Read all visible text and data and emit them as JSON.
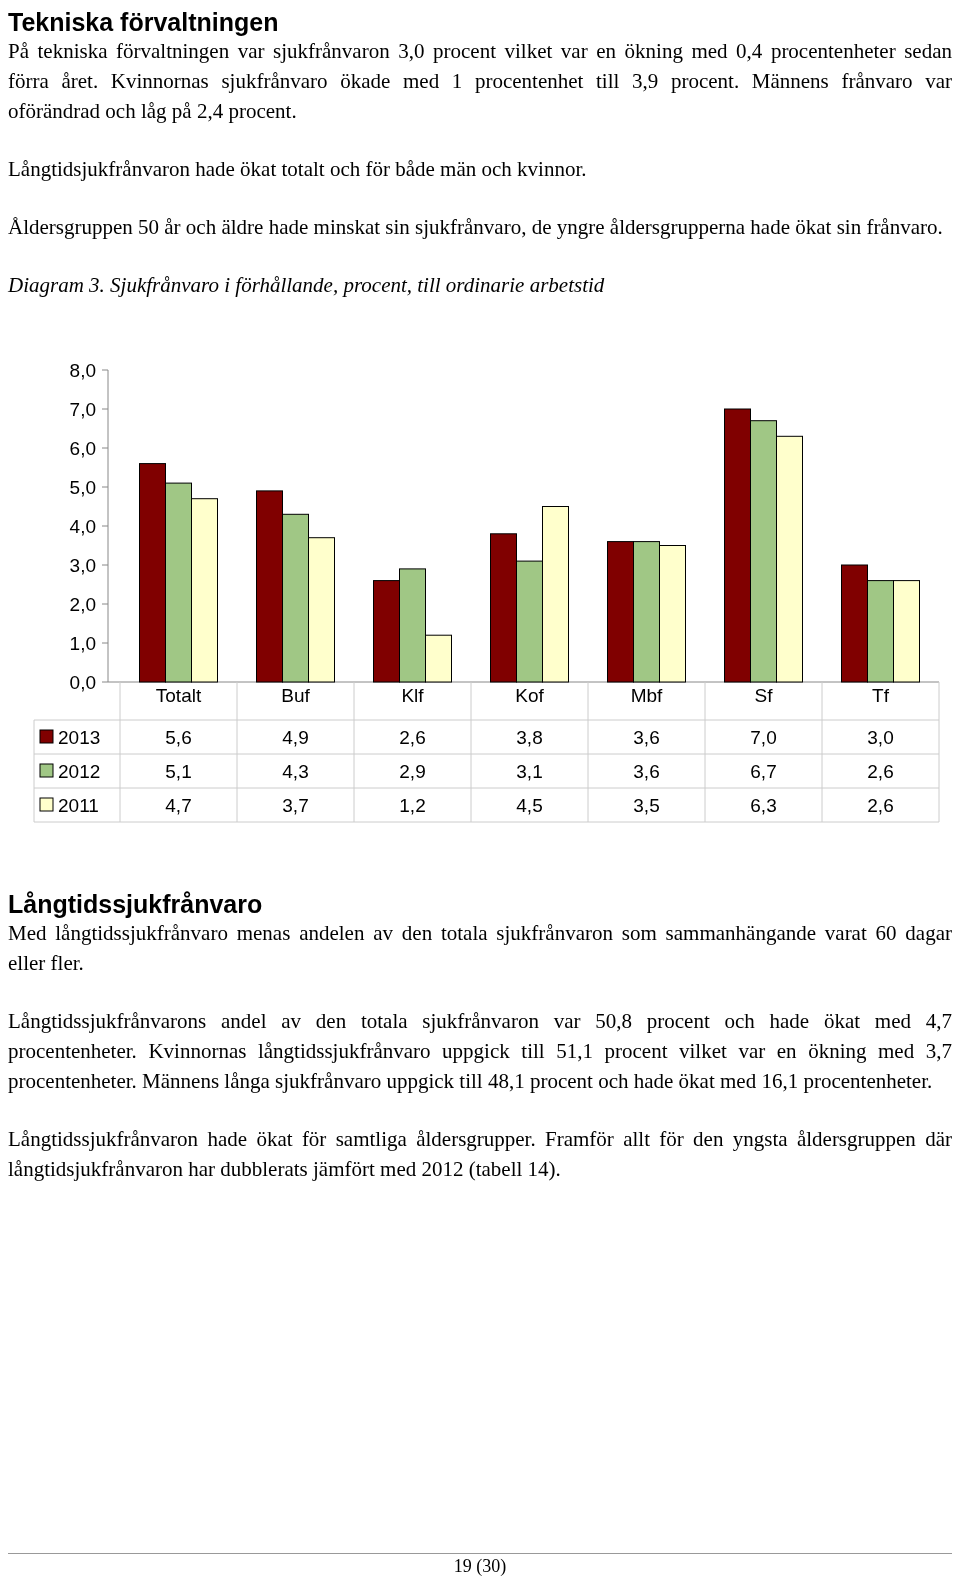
{
  "chart_data": {
    "type": "bar",
    "title": "Diagram 3. Sjukfrånvaro i förhållande, procent, till ordinarie arbetstid",
    "categories": [
      "Totalt",
      "Buf",
      "Klf",
      "Kof",
      "Mbf",
      "Sf",
      "Tf"
    ],
    "series": [
      {
        "name": "2013",
        "color": "#800000",
        "values": [
          5.6,
          4.9,
          2.6,
          3.8,
          3.6,
          7.0,
          3.0
        ],
        "value_labels": [
          "5,6",
          "4,9",
          "2,6",
          "3,8",
          "3,6",
          "7,0",
          "3,0"
        ]
      },
      {
        "name": "2012",
        "color": "#a0c785",
        "values": [
          5.1,
          4.3,
          2.9,
          3.1,
          3.6,
          6.7,
          2.6
        ],
        "value_labels": [
          "5,1",
          "4,3",
          "2,9",
          "3,1",
          "3,6",
          "6,7",
          "2,6"
        ]
      },
      {
        "name": "2011",
        "color": "#ffffcc",
        "values": [
          4.7,
          3.7,
          1.2,
          4.5,
          3.5,
          6.3,
          2.6
        ],
        "value_labels": [
          "4,7",
          "3,7",
          "1,2",
          "4,5",
          "3,5",
          "6,3",
          "2,6"
        ]
      }
    ],
    "ylim": [
      0,
      8
    ],
    "yticks": [
      {
        "value": 0,
        "label": "0,0"
      },
      {
        "value": 1,
        "label": "1,0"
      },
      {
        "value": 2,
        "label": "2,0"
      },
      {
        "value": 3,
        "label": "3,0"
      },
      {
        "value": 4,
        "label": "4,0"
      },
      {
        "value": 5,
        "label": "5,0"
      },
      {
        "value": 6,
        "label": "6,0"
      },
      {
        "value": 7,
        "label": "7,0"
      },
      {
        "value": 8,
        "label": "8,0"
      }
    ],
    "legend": "bottom",
    "annotations": [
      "Tekniska förvaltningen",
      "På tekniska förvaltningen var sjukfrånvaron 3,0 procent vilket var en ökning med 0,4 procentenheter sedan förra året. Kvinnornas sjukfrånvaro ökade med 1 procentenhet till 3,9 procent. Männens frånvaro var oförändrad och låg på 2,4 procent.",
      "Långtidsjukfrånvaron hade ökat totalt och för både män och kvinnor.",
      "Åldersgruppen 50 år och äldre hade minskat sin sjukfrånvaro, de yngre åldersgrupperna hade ökat sin frånvaro.",
      "Långtidssjukfrånvaro",
      "Med långtidssjukfrånvaro menas andelen av den totala sjukfrånvaron som sammanhängande varat 60 dagar eller fler.",
      "Långtidssjukfrånvarons andel av den totala sjukfrånvaron var 50,8 procent och hade ökat med 4,7 procentenheter. Kvinnornas långtidssjukfrånvaro uppgick till 51,1 procent vilket var en ökning med 3,7 procentenheter. Männens långa sjukfrånvaro uppgick till 48,1 procent och hade ökat med 16,1 procentenheter.",
      "Långtidssjukfrånvaron hade ökat för samtliga åldersgrupper. Framför allt för den yngsta åldersgruppen där långtidsjukfrånvaron har dubblerats jämfört med 2012 (tabell 14).",
      "19 (30)"
    ]
  }
}
